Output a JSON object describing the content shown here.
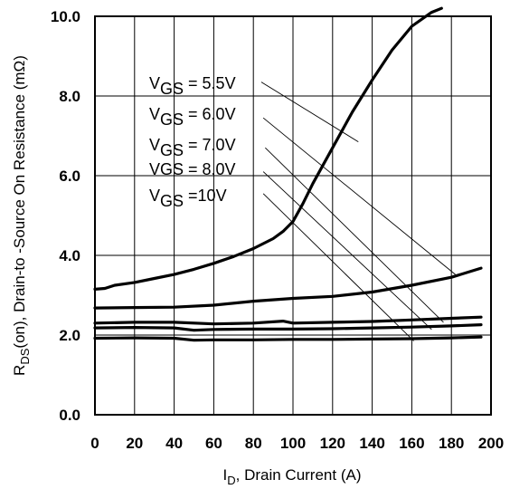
{
  "chart_data": {
    "type": "line",
    "title": "",
    "xlabel": {
      "base": "I",
      "sub": "D",
      "rest": ", Drain Current (A)"
    },
    "ylabel": {
      "base": "R",
      "sub": "DS",
      "rest": "(on),  Drain-to -Source On Resistance (mΩ)"
    },
    "xlim": [
      0,
      200
    ],
    "ylim": [
      0,
      10
    ],
    "x_ticks": [
      "0",
      "20",
      "40",
      "60",
      "80",
      "100",
      "120",
      "140",
      "160",
      "180",
      "200"
    ],
    "y_ticks": [
      "0.0",
      "2.0",
      "4.0",
      "6.0",
      "8.0",
      "10.0"
    ],
    "grid": true,
    "legend_placement": "upper-center",
    "series": [
      {
        "name": "V_GS = 5.5V",
        "label_base": "V",
        "label_sub": "GS",
        "label_rest": " = 5.5V",
        "x": [
          0,
          5,
          10,
          20,
          30,
          40,
          50,
          60,
          70,
          80,
          90,
          95,
          100,
          105,
          110,
          120,
          130,
          140,
          150,
          160,
          170,
          175
        ],
        "y": [
          3.15,
          3.17,
          3.25,
          3.32,
          3.42,
          3.52,
          3.65,
          3.8,
          3.97,
          4.17,
          4.42,
          4.6,
          4.85,
          5.3,
          5.8,
          6.7,
          7.6,
          8.4,
          9.15,
          9.75,
          10.1,
          10.2
        ]
      },
      {
        "name": "V_GS = 6.0V",
        "label_base": "V",
        "label_sub": "GS",
        "label_rest": " = 6.0V",
        "x": [
          0,
          20,
          40,
          60,
          80,
          100,
          120,
          140,
          160,
          180,
          195
        ],
        "y": [
          2.68,
          2.69,
          2.7,
          2.75,
          2.85,
          2.92,
          2.97,
          3.08,
          3.25,
          3.45,
          3.68
        ]
      },
      {
        "name": "V_GS = 7.0V",
        "label_base": "V",
        "label_sub": "GS",
        "label_rest": " = 7.0V",
        "x": [
          0,
          20,
          40,
          60,
          80,
          95,
          100,
          120,
          140,
          160,
          180,
          195
        ],
        "y": [
          2.3,
          2.32,
          2.32,
          2.28,
          2.3,
          2.35,
          2.3,
          2.32,
          2.34,
          2.38,
          2.42,
          2.45
        ]
      },
      {
        "name": "VGS = 8.0V",
        "label_base": "VGS = 8.0V",
        "label_sub": "",
        "label_rest": "",
        "x": [
          0,
          20,
          40,
          50,
          60,
          80,
          100,
          120,
          140,
          160,
          180,
          195
        ],
        "y": [
          2.18,
          2.19,
          2.18,
          2.12,
          2.14,
          2.15,
          2.15,
          2.16,
          2.18,
          2.2,
          2.23,
          2.26
        ]
      },
      {
        "name": "V_GS =10V",
        "label_base": "V",
        "label_sub": "GS",
        "label_rest": " =10V",
        "x": [
          0,
          20,
          40,
          50,
          60,
          80,
          100,
          120,
          140,
          160,
          180,
          195
        ],
        "y": [
          1.92,
          1.93,
          1.92,
          1.87,
          1.88,
          1.88,
          1.89,
          1.89,
          1.9,
          1.91,
          1.93,
          1.95
        ]
      }
    ],
    "leader_lines": [
      {
        "series": 0,
        "from": [
          84,
          8.35
        ],
        "to": [
          133,
          6.85
        ]
      },
      {
        "series": 1,
        "from": [
          85,
          7.45
        ],
        "to": [
          182,
          3.52
        ]
      },
      {
        "series": 2,
        "from": [
          86,
          6.7
        ],
        "to": [
          176,
          2.32
        ]
      },
      {
        "series": 3,
        "from": [
          85,
          6.1
        ],
        "to": [
          170,
          2.14
        ]
      },
      {
        "series": 4,
        "from": [
          85,
          5.55
        ],
        "to": [
          161,
          1.85
        ]
      }
    ],
    "colors": {
      "line": "#000000",
      "grid": "#000000",
      "background": "#ffffff"
    }
  }
}
